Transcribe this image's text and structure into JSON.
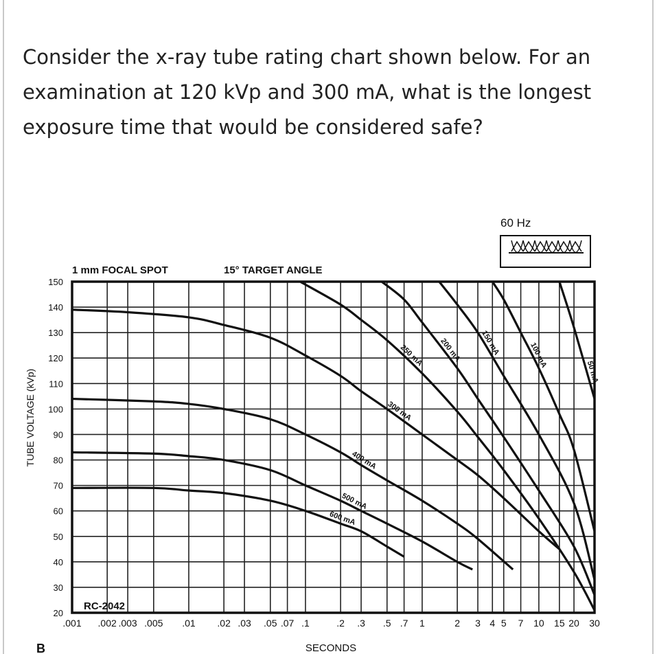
{
  "question": "Consider the x-ray tube rating chart shown below. For an examination at 120 kVp and 300 mA, what is the longest exposure time that would be considered safe?",
  "figure_label": "B",
  "chart_data": {
    "type": "line",
    "title_left": "1 mm FOCAL SPOT",
    "title_right": "15° TARGET ANGLE",
    "frequency_label": "60 Hz",
    "rectification_icon": "full-wave-rectified-waveform-icon",
    "model": "RC-2042",
    "xlabel": "SECONDS",
    "ylabel": "TUBE VOLTAGE (kVp)",
    "x_scale": "log",
    "xlim": [
      0.001,
      30
    ],
    "ylim": [
      20,
      150
    ],
    "grid": true,
    "x_ticks": [
      0.001,
      0.002,
      0.003,
      0.005,
      0.01,
      0.02,
      0.03,
      0.05,
      0.07,
      0.1,
      0.2,
      0.3,
      0.5,
      0.7,
      1,
      2,
      3,
      4,
      5,
      7,
      10,
      15,
      20,
      30
    ],
    "x_tick_labels": [
      ".001",
      ".002",
      ".003",
      ".005",
      ".01",
      ".02",
      ".03",
      ".05",
      ".07",
      ".1",
      ".2",
      ".3",
      ".5",
      ".7",
      "1",
      "2",
      "3",
      "4",
      "5",
      "7",
      "10",
      "15",
      "20",
      "30"
    ],
    "y_ticks": [
      20,
      30,
      40,
      50,
      60,
      70,
      80,
      90,
      100,
      110,
      120,
      130,
      140,
      150
    ],
    "y_tick_labels": [
      "20",
      "30",
      "40",
      "50",
      "60",
      "70",
      "80",
      "90",
      "100",
      "110",
      "120",
      "130",
      "140",
      "150"
    ],
    "series": [
      {
        "name": "600 mA",
        "points": [
          [
            0.001,
            69
          ],
          [
            0.005,
            69
          ],
          [
            0.01,
            68
          ],
          [
            0.02,
            67
          ],
          [
            0.05,
            64
          ],
          [
            0.1,
            60
          ],
          [
            0.2,
            55
          ],
          [
            0.3,
            52
          ],
          [
            0.5,
            46
          ],
          [
            0.7,
            42
          ]
        ]
      },
      {
        "name": "500 mA",
        "points": [
          [
            0.001,
            83
          ],
          [
            0.005,
            82.5
          ],
          [
            0.01,
            81.5
          ],
          [
            0.02,
            80
          ],
          [
            0.05,
            76
          ],
          [
            0.1,
            70
          ],
          [
            0.2,
            64
          ],
          [
            0.3,
            60
          ],
          [
            0.5,
            55
          ],
          [
            1,
            48
          ],
          [
            2,
            40
          ],
          [
            2.7,
            37
          ]
        ]
      },
      {
        "name": "400 mA",
        "points": [
          [
            0.001,
            104
          ],
          [
            0.005,
            103
          ],
          [
            0.01,
            102
          ],
          [
            0.02,
            100
          ],
          [
            0.05,
            96
          ],
          [
            0.1,
            90
          ],
          [
            0.2,
            83
          ],
          [
            0.3,
            78
          ],
          [
            0.5,
            72
          ],
          [
            1,
            64
          ],
          [
            2,
            55
          ],
          [
            3,
            49
          ],
          [
            6,
            37
          ]
        ]
      },
      {
        "name": "300 mA",
        "points": [
          [
            0.001,
            139
          ],
          [
            0.003,
            138
          ],
          [
            0.01,
            136
          ],
          [
            0.02,
            133
          ],
          [
            0.05,
            128
          ],
          [
            0.1,
            121
          ],
          [
            0.2,
            113
          ],
          [
            0.3,
            107
          ],
          [
            0.5,
            100
          ],
          [
            1,
            90
          ],
          [
            2,
            80
          ],
          [
            3,
            74
          ],
          [
            5,
            65
          ],
          [
            10,
            52
          ],
          [
            15,
            45
          ]
        ]
      },
      {
        "name": "250 mA",
        "points": [
          [
            0.09,
            150
          ],
          [
            0.2,
            141
          ],
          [
            0.3,
            135
          ],
          [
            0.5,
            127
          ],
          [
            1,
            114
          ],
          [
            2,
            99
          ],
          [
            3,
            89
          ],
          [
            5,
            76
          ],
          [
            10,
            57
          ],
          [
            20,
            36
          ],
          [
            30,
            21
          ]
        ]
      },
      {
        "name": "200 mA",
        "points": [
          [
            0.45,
            150
          ],
          [
            0.7,
            143
          ],
          [
            1,
            134
          ],
          [
            2,
            116
          ],
          [
            3,
            104
          ],
          [
            5,
            89
          ],
          [
            10,
            68
          ],
          [
            20,
            46
          ],
          [
            30,
            27
          ]
        ]
      },
      {
        "name": "150 mA",
        "points": [
          [
            1.4,
            150
          ],
          [
            2,
            141
          ],
          [
            3,
            130
          ],
          [
            5,
            113
          ],
          [
            10,
            90
          ],
          [
            20,
            63
          ],
          [
            30,
            33
          ]
        ]
      },
      {
        "name": "100 mA",
        "points": [
          [
            4,
            150
          ],
          [
            5,
            143
          ],
          [
            7,
            130
          ],
          [
            10,
            116
          ],
          [
            15,
            98
          ],
          [
            20,
            84
          ],
          [
            30,
            52
          ]
        ]
      },
      {
        "name": "50 mA",
        "points": [
          [
            15,
            150
          ],
          [
            20,
            132
          ],
          [
            30,
            104
          ]
        ]
      }
    ]
  }
}
